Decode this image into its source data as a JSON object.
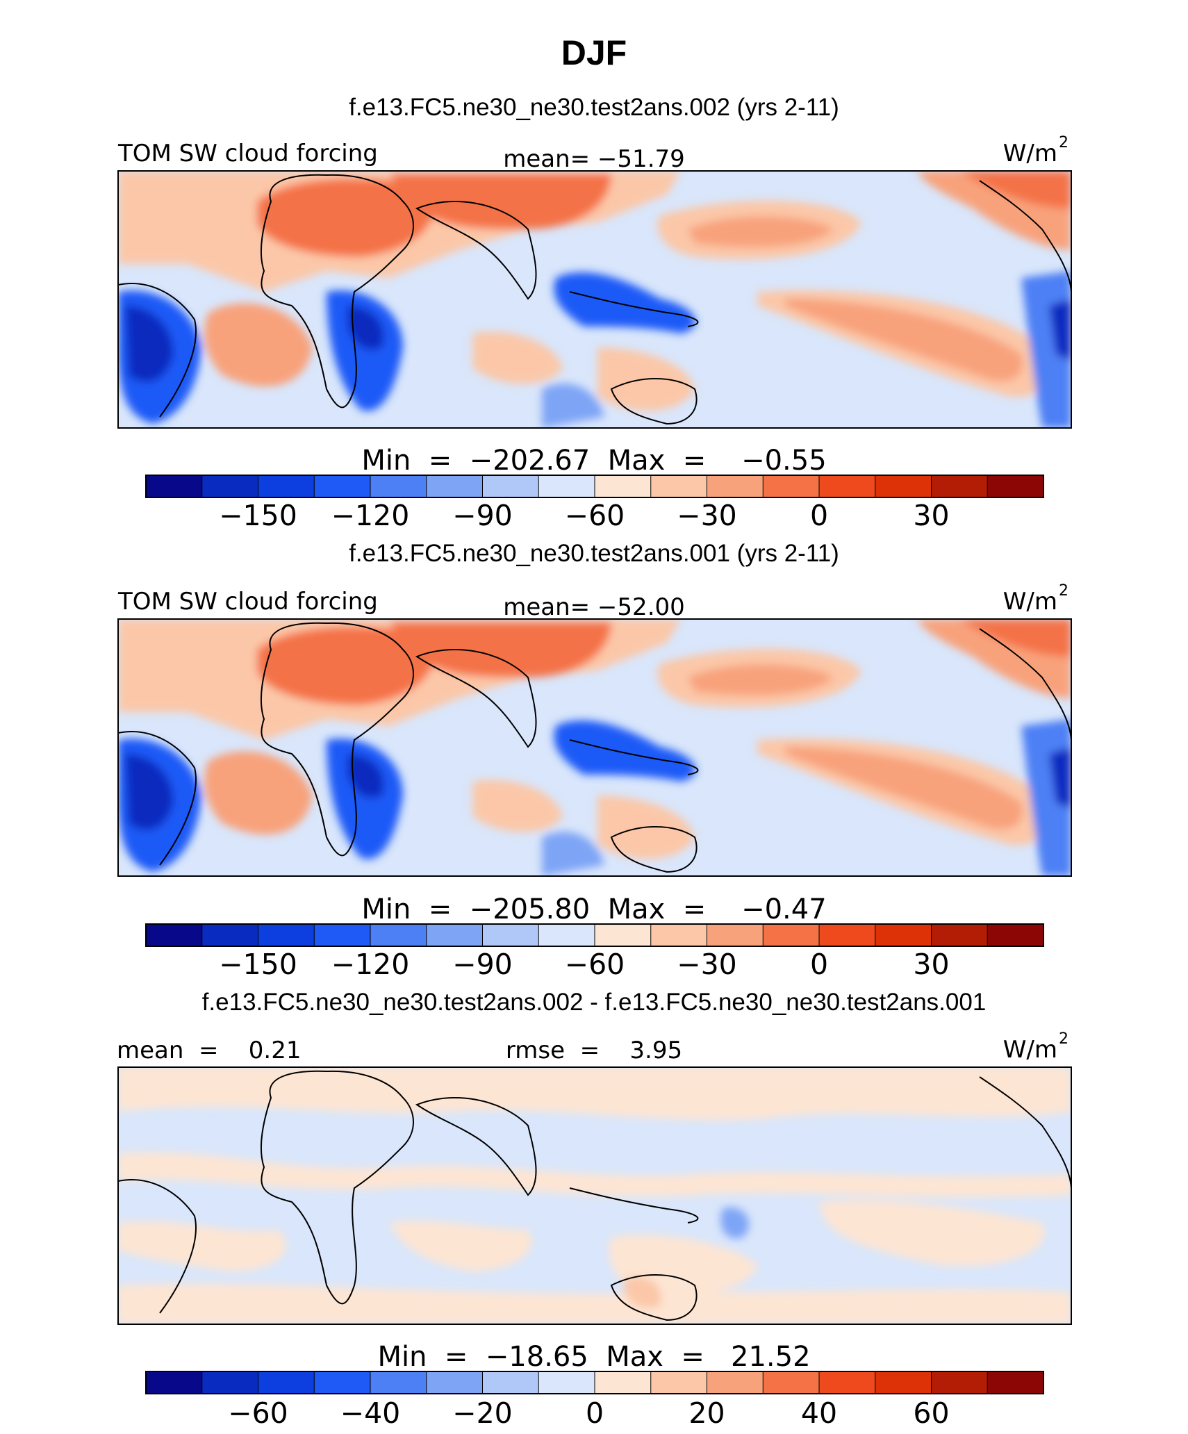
{
  "figure": {
    "season": "DJF"
  },
  "palette": [
    "#08088a",
    "#0a2bbf",
    "#0d3fe0",
    "#1f5af7",
    "#4d80f5",
    "#7ea4f6",
    "#b0c8f8",
    "#d9e6fb",
    "#fde5d3",
    "#fbc7a8",
    "#f8a27c",
    "#f47246",
    "#ee4a1d",
    "#dd3108",
    "#b41d05",
    "#8c0606"
  ],
  "panels": [
    {
      "title": "f.e13.FC5.ne30_ne30.test2ans.002 (yrs 2-11)",
      "left": "TOM SW cloud forcing",
      "center": "mean= −51.79",
      "units": "W/m",
      "units_sup": "2",
      "stats": "Min  =  −202.67  Max  =    −0.55"
    },
    {
      "title": "f.e13.FC5.ne30_ne30.test2ans.001 (yrs 2-11)",
      "left": "TOM SW cloud forcing",
      "center": "mean= −52.00",
      "units": "W/m",
      "units_sup": "2",
      "stats": "Min  =  −205.80  Max  =    −0.47"
    },
    {
      "title": "f.e13.FC5.ne30_ne30.test2ans.002 - f.e13.FC5.ne30_ne30.test2ans.001",
      "left": "mean  =    0.21",
      "center": "rmse  =    3.95",
      "units": "W/m",
      "units_sup": "2",
      "stats": "Min  =  −18.65  Max  =   21.52"
    }
  ],
  "chart_data": [
    {
      "type": "heatmap",
      "title": "f.e13.FC5.ne30_ne30.test2ans.002 (yrs 2-11)",
      "variable": "TOM SW cloud forcing",
      "units": "W/m2",
      "mean": -51.79,
      "min": -202.67,
      "max": -0.55,
      "colorbar_ticks": [
        "−150",
        "−120",
        "−90",
        "−60",
        "−30",
        "0",
        "30"
      ],
      "colorbar_tick_values": [
        -150,
        -120,
        -90,
        -60,
        -30,
        0,
        30
      ],
      "colorbar_range": [
        -180,
        60
      ],
      "colorbar_step": 15
    },
    {
      "type": "heatmap",
      "title": "f.e13.FC5.ne30_ne30.test2ans.001 (yrs 2-11)",
      "variable": "TOM SW cloud forcing",
      "units": "W/m2",
      "mean": -52.0,
      "min": -205.8,
      "max": -0.47,
      "colorbar_ticks": [
        "−150",
        "−120",
        "−90",
        "−60",
        "−30",
        "0",
        "30"
      ],
      "colorbar_tick_values": [
        -150,
        -120,
        -90,
        -60,
        -30,
        0,
        30
      ],
      "colorbar_range": [
        -180,
        60
      ],
      "colorbar_step": 15
    },
    {
      "type": "heatmap",
      "title": "f.e13.FC5.ne30_ne30.test2ans.002 - f.e13.FC5.ne30_ne30.test2ans.001",
      "units": "W/m2",
      "mean": 0.21,
      "rmse": 3.95,
      "min": -18.65,
      "max": 21.52,
      "colorbar_ticks": [
        "−60",
        "−40",
        "−20",
        "0",
        "20",
        "40",
        "60"
      ],
      "colorbar_tick_values": [
        -60,
        -40,
        -20,
        0,
        20,
        40,
        60
      ],
      "colorbar_range": [
        -80,
        80
      ],
      "colorbar_step": 10
    }
  ]
}
